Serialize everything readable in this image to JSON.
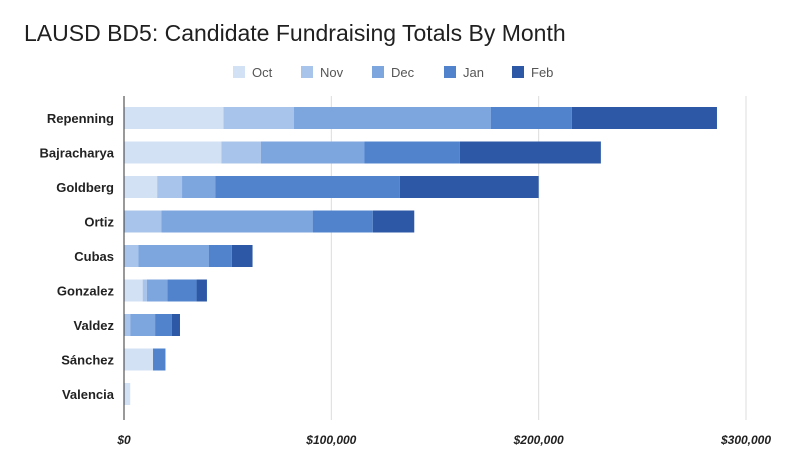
{
  "chart_data": {
    "type": "bar",
    "orientation": "horizontal",
    "stacked": true,
    "title": "LAUSD BD5: Candidate Fundraising Totals By Month",
    "xlabel": "",
    "ylabel": "",
    "xlim": [
      0,
      300000
    ],
    "xticks": [
      0,
      100000,
      200000,
      300000
    ],
    "xtick_labels": [
      "$0",
      "$100,000",
      "$200,000",
      "$300,000"
    ],
    "grid": true,
    "legend_position": "top",
    "categories": [
      "Repenning",
      "Bajracharya",
      "Goldberg",
      "Ortiz",
      "Cubas",
      "Gonzalez",
      "Valdez",
      "Sánchez",
      "Valencia"
    ],
    "series": [
      {
        "name": "Oct",
        "color": "#d3e1f4",
        "values": [
          48000,
          47000,
          16000,
          0,
          0,
          9000,
          0,
          14000,
          3000
        ]
      },
      {
        "name": "Nov",
        "color": "#a9c4ea",
        "values": [
          34000,
          19000,
          12000,
          18000,
          7000,
          2000,
          3000,
          0,
          0
        ]
      },
      {
        "name": "Dec",
        "color": "#7da6df",
        "values": [
          95000,
          50000,
          16000,
          73000,
          34000,
          10000,
          12000,
          0,
          0
        ]
      },
      {
        "name": "Jan",
        "color": "#5083cc",
        "values": [
          39000,
          46000,
          89000,
          29000,
          11000,
          14000,
          8000,
          6000,
          0
        ]
      },
      {
        "name": "Feb",
        "color": "#2d58a6",
        "values": [
          70000,
          68000,
          67000,
          20000,
          10000,
          5000,
          4000,
          0,
          0
        ]
      }
    ]
  }
}
